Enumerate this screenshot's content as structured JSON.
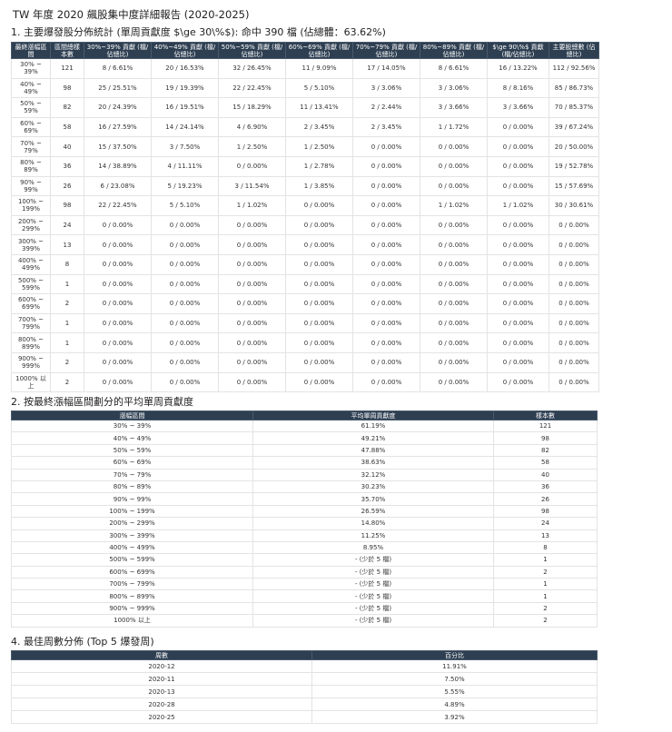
{
  "header": {
    "title": "TW 年度 2020 飆股集中度詳細報告 (2020-2025)"
  },
  "section1": {
    "title": "1. 主要爆發股分佈統計 (單周貢獻度 $\\ge 30\\%$): 命中 390 檔 (佔總體：63.62%)",
    "table": {
      "headers": [
        "最終漲幅區間",
        "區間總樣本數",
        "30%~39% 貢獻 (檔/佔總比)",
        "40%~49% 貢獻 (檔/佔總比)",
        "50%~59% 貢獻 (檔/佔總比)",
        "60%~69% 貢獻 (檔/佔總比)",
        "70%~79% 貢獻 (檔/佔總比)",
        "80%~89% 貢獻 (檔/佔總比)",
        "$\\ge 90\\%$ 貢獻 (檔/佔總比)",
        "主要股總數 (佔總比)"
      ],
      "rows": [
        [
          "30% ~ 39%",
          "121",
          "8 / 6.61%",
          "20 / 16.53%",
          "32 / 26.45%",
          "11 / 9.09%",
          "17 / 14.05%",
          "8 / 6.61%",
          "16 / 13.22%",
          "112 / 92.56%"
        ],
        [
          "40% ~ 49%",
          "98",
          "25 / 25.51%",
          "19 / 19.39%",
          "22 / 22.45%",
          "5 / 5.10%",
          "3 / 3.06%",
          "3 / 3.06%",
          "8 / 8.16%",
          "85 / 86.73%"
        ],
        [
          "50% ~ 59%",
          "82",
          "20 / 24.39%",
          "16 / 19.51%",
          "15 / 18.29%",
          "11 / 13.41%",
          "2 / 2.44%",
          "3 / 3.66%",
          "3 / 3.66%",
          "70 / 85.37%"
        ],
        [
          "60% ~ 69%",
          "58",
          "16 / 27.59%",
          "14 / 24.14%",
          "4 / 6.90%",
          "2 / 3.45%",
          "2 / 3.45%",
          "1 / 1.72%",
          "0 / 0.00%",
          "39 / 67.24%"
        ],
        [
          "70% ~ 79%",
          "40",
          "15 / 37.50%",
          "3 / 7.50%",
          "1 / 2.50%",
          "1 / 2.50%",
          "0 / 0.00%",
          "0 / 0.00%",
          "0 / 0.00%",
          "20 / 50.00%"
        ],
        [
          "80% ~ 89%",
          "36",
          "14 / 38.89%",
          "4 / 11.11%",
          "0 / 0.00%",
          "1 / 2.78%",
          "0 / 0.00%",
          "0 / 0.00%",
          "0 / 0.00%",
          "19 / 52.78%"
        ],
        [
          "90% ~ 99%",
          "26",
          "6 / 23.08%",
          "5 / 19.23%",
          "3 / 11.54%",
          "1 / 3.85%",
          "0 / 0.00%",
          "0 / 0.00%",
          "0 / 0.00%",
          "15 / 57.69%"
        ],
        [
          "100% ~ 199%",
          "98",
          "22 / 22.45%",
          "5 / 5.10%",
          "1 / 1.02%",
          "0 / 0.00%",
          "0 / 0.00%",
          "1 / 1.02%",
          "1 / 1.02%",
          "30 / 30.61%"
        ],
        [
          "200% ~ 299%",
          "24",
          "0 / 0.00%",
          "0 / 0.00%",
          "0 / 0.00%",
          "0 / 0.00%",
          "0 / 0.00%",
          "0 / 0.00%",
          "0 / 0.00%",
          "0 / 0.00%"
        ],
        [
          "300% ~ 399%",
          "13",
          "0 / 0.00%",
          "0 / 0.00%",
          "0 / 0.00%",
          "0 / 0.00%",
          "0 / 0.00%",
          "0 / 0.00%",
          "0 / 0.00%",
          "0 / 0.00%"
        ],
        [
          "400% ~ 499%",
          "8",
          "0 / 0.00%",
          "0 / 0.00%",
          "0 / 0.00%",
          "0 / 0.00%",
          "0 / 0.00%",
          "0 / 0.00%",
          "0 / 0.00%",
          "0 / 0.00%"
        ],
        [
          "500% ~ 599%",
          "1",
          "0 / 0.00%",
          "0 / 0.00%",
          "0 / 0.00%",
          "0 / 0.00%",
          "0 / 0.00%",
          "0 / 0.00%",
          "0 / 0.00%",
          "0 / 0.00%"
        ],
        [
          "600% ~ 699%",
          "2",
          "0 / 0.00%",
          "0 / 0.00%",
          "0 / 0.00%",
          "0 / 0.00%",
          "0 / 0.00%",
          "0 / 0.00%",
          "0 / 0.00%",
          "0 / 0.00%"
        ],
        [
          "700% ~ 799%",
          "1",
          "0 / 0.00%",
          "0 / 0.00%",
          "0 / 0.00%",
          "0 / 0.00%",
          "0 / 0.00%",
          "0 / 0.00%",
          "0 / 0.00%",
          "0 / 0.00%"
        ],
        [
          "800% ~ 899%",
          "1",
          "0 / 0.00%",
          "0 / 0.00%",
          "0 / 0.00%",
          "0 / 0.00%",
          "0 / 0.00%",
          "0 / 0.00%",
          "0 / 0.00%",
          "0 / 0.00%"
        ],
        [
          "900% ~ 999%",
          "2",
          "0 / 0.00%",
          "0 / 0.00%",
          "0 / 0.00%",
          "0 / 0.00%",
          "0 / 0.00%",
          "0 / 0.00%",
          "0 / 0.00%",
          "0 / 0.00%"
        ],
        [
          "1000% 以上",
          "2",
          "0 / 0.00%",
          "0 / 0.00%",
          "0 / 0.00%",
          "0 / 0.00%",
          "0 / 0.00%",
          "0 / 0.00%",
          "0 / 0.00%",
          "0 / 0.00%"
        ]
      ]
    }
  },
  "section2": {
    "title": "2. 按最終漲幅區間劃分的平均單周貢獻度",
    "table": {
      "headers": [
        "漲幅區間",
        "平均單周貢獻度",
        "樣本數"
      ],
      "rows": [
        [
          "30% ~ 39%",
          "61.19%",
          "121"
        ],
        [
          "40% ~ 49%",
          "49.21%",
          "98"
        ],
        [
          "50% ~ 59%",
          "47.88%",
          "82"
        ],
        [
          "60% ~ 69%",
          "38.63%",
          "58"
        ],
        [
          "70% ~ 79%",
          "32.12%",
          "40"
        ],
        [
          "80% ~ 89%",
          "30.23%",
          "36"
        ],
        [
          "90% ~ 99%",
          "35.70%",
          "26"
        ],
        [
          "100% ~ 199%",
          "26.59%",
          "98"
        ],
        [
          "200% ~ 299%",
          "14.80%",
          "24"
        ],
        [
          "300% ~ 399%",
          "11.25%",
          "13"
        ],
        [
          "400% ~ 499%",
          "8.95%",
          "8"
        ],
        [
          "500% ~ 599%",
          "- (少於 5 檔)",
          "1"
        ],
        [
          "600% ~ 699%",
          "- (少於 5 檔)",
          "2"
        ],
        [
          "700% ~ 799%",
          "- (少於 5 檔)",
          "1"
        ],
        [
          "800% ~ 899%",
          "- (少於 5 檔)",
          "1"
        ],
        [
          "900% ~ 999%",
          "- (少於 5 檔)",
          "2"
        ],
        [
          "1000% 以上",
          "- (少於 5 檔)",
          "2"
        ]
      ]
    }
  },
  "section4": {
    "title": "4. 最佳周數分佈 (Top 5 爆發周)",
    "table": {
      "headers": [
        "周數",
        "百分比"
      ],
      "rows": [
        [
          "2020-12",
          "11.91%"
        ],
        [
          "2020-11",
          "7.50%"
        ],
        [
          "2020-13",
          "5.55%"
        ],
        [
          "2020-28",
          "4.89%"
        ],
        [
          "2020-25",
          "3.92%"
        ]
      ]
    }
  }
}
